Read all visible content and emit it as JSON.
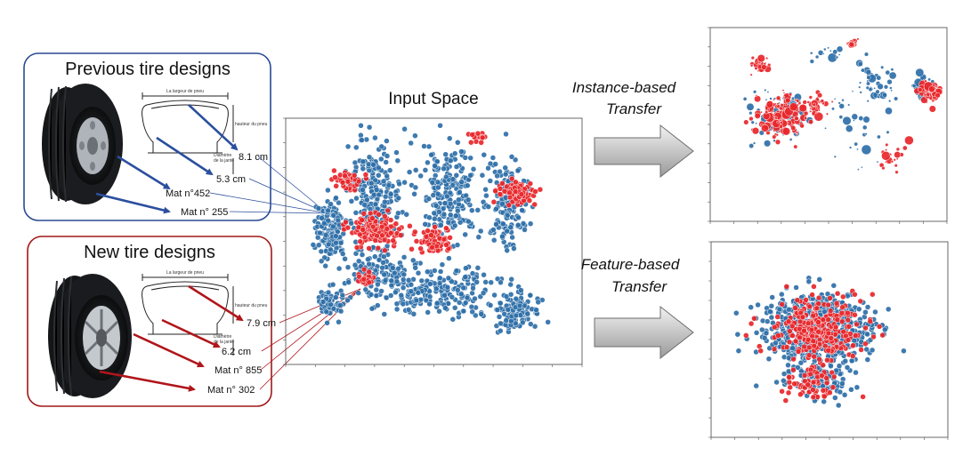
{
  "colors": {
    "old_box": "#2a4a94",
    "new_box": "#a01818",
    "blue_point": "#2e6fa8",
    "red_point": "#e8262a",
    "blue_arrow": "#2b4f9e",
    "red_arrow": "#b0151a",
    "block_arrow_light": "#f2f2f2",
    "block_arrow_dark": "#9a9a9a"
  },
  "previous": {
    "title": "Previous tire designs",
    "dims": [
      "8.1 cm",
      "5.3 cm"
    ],
    "mats": [
      "Mat n°452",
      "Mat n° 255"
    ],
    "diagram_texts": [
      "La largeur de pneu",
      "hauteur du pneu",
      "Diamètre",
      "de la jante"
    ]
  },
  "new": {
    "title": "New tire designs",
    "dims": [
      "7.9 cm",
      "6.2 cm"
    ],
    "mats": [
      "Mat n° 855",
      "Mat n° 302"
    ],
    "diagram_texts": [
      "La largeur de pneu",
      "hauteur du pneu",
      "Diamètre",
      "de la jante"
    ]
  },
  "input_space": {
    "title": "Input Space"
  },
  "instance": {
    "line1": "Instance-based",
    "line2": "Transfer"
  },
  "feature": {
    "line1": "Feature-based",
    "line2": "Transfer"
  },
  "chart_data": [
    {
      "type": "scatter",
      "panel": "input-space",
      "series": [
        {
          "color": "blue",
          "clusters": [
            [
              0.15,
              0.45,
              0.05,
              0.12,
              140
            ],
            [
              0.3,
              0.3,
              0.09,
              0.2,
              220
            ],
            [
              0.55,
              0.3,
              0.1,
              0.18,
              220
            ],
            [
              0.75,
              0.35,
              0.07,
              0.2,
              160
            ],
            [
              0.5,
              0.7,
              0.2,
              0.1,
              220
            ],
            [
              0.78,
              0.78,
              0.08,
              0.08,
              120
            ],
            [
              0.3,
              0.62,
              0.1,
              0.08,
              120
            ],
            [
              0.15,
              0.75,
              0.05,
              0.06,
              60
            ]
          ]
        },
        {
          "color": "red",
          "clusters": [
            [
              0.3,
              0.45,
              0.08,
              0.06,
              150
            ],
            [
              0.5,
              0.5,
              0.05,
              0.05,
              90
            ],
            [
              0.2,
              0.25,
              0.05,
              0.04,
              40
            ],
            [
              0.78,
              0.3,
              0.06,
              0.05,
              80
            ],
            [
              0.65,
              0.08,
              0.02,
              0.02,
              20
            ],
            [
              0.27,
              0.65,
              0.03,
              0.03,
              25
            ]
          ]
        }
      ]
    },
    {
      "type": "scatter",
      "panel": "instance-based-transfer",
      "series": [
        {
          "color": "blue",
          "clusters": [
            [
              0.3,
              0.45,
              0.12,
              0.15,
              90
            ],
            [
              0.7,
              0.3,
              0.08,
              0.15,
              40
            ],
            [
              0.9,
              0.3,
              0.05,
              0.05,
              30
            ],
            [
              0.5,
              0.12,
              0.1,
              0.05,
              15
            ],
            [
              0.55,
              0.5,
              0.25,
              0.25,
              40
            ]
          ]
        },
        {
          "color": "red",
          "clusters": [
            [
              0.3,
              0.45,
              0.1,
              0.1,
              150
            ],
            [
              0.93,
              0.33,
              0.05,
              0.05,
              50
            ],
            [
              0.2,
              0.2,
              0.05,
              0.05,
              25
            ],
            [
              0.6,
              0.08,
              0.02,
              0.02,
              15
            ],
            [
              0.78,
              0.65,
              0.05,
              0.08,
              20
            ],
            [
              0.45,
              0.4,
              0.06,
              0.06,
              30
            ]
          ]
        }
      ]
    },
    {
      "type": "scatter",
      "panel": "feature-based-transfer",
      "series": [
        {
          "color": "blue",
          "clusters": [
            [
              0.45,
              0.45,
              0.22,
              0.18,
              650
            ],
            [
              0.45,
              0.7,
              0.12,
              0.1,
              120
            ]
          ]
        },
        {
          "color": "red",
          "clusters": [
            [
              0.45,
              0.45,
              0.2,
              0.16,
              280
            ],
            [
              0.42,
              0.72,
              0.1,
              0.08,
              60
            ]
          ]
        }
      ]
    }
  ]
}
